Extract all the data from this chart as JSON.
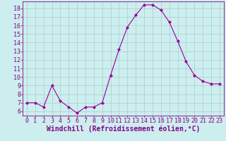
{
  "x": [
    0,
    1,
    2,
    3,
    4,
    5,
    6,
    7,
    8,
    9,
    10,
    11,
    12,
    13,
    14,
    15,
    16,
    17,
    18,
    19,
    20,
    21,
    22,
    23
  ],
  "y": [
    7.0,
    7.0,
    6.5,
    9.0,
    7.2,
    6.5,
    5.8,
    6.5,
    6.5,
    7.0,
    10.2,
    13.2,
    15.8,
    17.2,
    18.4,
    18.4,
    17.8,
    16.4,
    14.2,
    11.8,
    10.2,
    9.5,
    9.2,
    9.2
  ],
  "line_color": "#990099",
  "marker": "D",
  "marker_size": 2,
  "bg_color": "#cceeee",
  "grid_color": "#aacccc",
  "xlabel": "Windchill (Refroidissement éolien,°C)",
  "xlim": [
    -0.5,
    23.5
  ],
  "ylim": [
    5.5,
    18.8
  ],
  "yticks": [
    6,
    7,
    8,
    9,
    10,
    11,
    12,
    13,
    14,
    15,
    16,
    17,
    18
  ],
  "xticks": [
    0,
    1,
    2,
    3,
    4,
    5,
    6,
    7,
    8,
    9,
    10,
    11,
    12,
    13,
    14,
    15,
    16,
    17,
    18,
    19,
    20,
    21,
    22,
    23
  ],
  "tick_label_color": "#880088",
  "tick_label_fontsize": 6,
  "xlabel_fontsize": 7,
  "xlabel_color": "#880088",
  "axis_color": "#880088",
  "spine_color": "#880088"
}
